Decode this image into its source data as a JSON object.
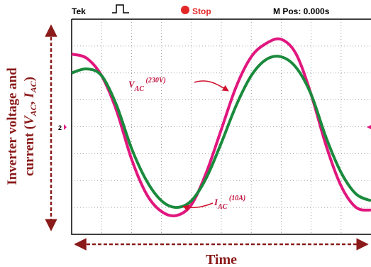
{
  "scope_header": {
    "brand": "Tek",
    "status": "Stop",
    "position": "M Pos: 0.000s",
    "ch_marker_left": "2",
    "status_color": "#e32626"
  },
  "chart_data": {
    "type": "line",
    "title": "",
    "xlabel": "Time",
    "ylabel_main": "Inverter voltage and",
    "ylabel_sub_prefix": "current  (",
    "ylabel_v": "V",
    "ylabel_v_sub": "AC",
    "ylabel_sep": ", ",
    "ylabel_i": "I",
    "ylabel_i_sub": "AC",
    "ylabel_suffix": ")",
    "grid": true,
    "xlim": [
      0,
      10
    ],
    "ylim": [
      -4,
      4
    ],
    "series": [
      {
        "name": "V_AC (230V)",
        "color": "#e0177e",
        "x": [
          0,
          0.5,
          1.0,
          1.5,
          2.0,
          2.5,
          3.0,
          3.5,
          4.0,
          4.5,
          5.0,
          5.5,
          6.0,
          6.5,
          7.0,
          7.5,
          8.0,
          8.5,
          9.0,
          9.5,
          10.0
        ],
        "values": [
          2.7,
          2.55,
          1.9,
          0.6,
          -1.2,
          -2.5,
          -3.15,
          -3.3,
          -2.9,
          -1.7,
          -0.1,
          1.5,
          2.6,
          3.1,
          3.25,
          2.7,
          1.2,
          -0.7,
          -2.2,
          -3.0,
          -3.1
        ]
      },
      {
        "name": "I_AC (10A)",
        "color": "#1a8a3c",
        "x": [
          0,
          0.5,
          1.0,
          1.5,
          2.0,
          2.5,
          3.0,
          3.5,
          4.0,
          4.5,
          5.0,
          5.5,
          6.0,
          6.5,
          7.0,
          7.5,
          8.0,
          8.5,
          9.0,
          9.5,
          10.0
        ],
        "values": [
          2.0,
          2.15,
          1.9,
          0.8,
          -0.8,
          -2.0,
          -2.75,
          -3.0,
          -2.75,
          -1.9,
          -0.6,
          0.8,
          1.9,
          2.5,
          2.6,
          2.2,
          1.2,
          -0.4,
          -1.7,
          -2.5,
          -2.75
        ]
      }
    ],
    "annotations": [
      {
        "label": "V",
        "sub": "AC",
        "sup": " (230V)"
      },
      {
        "label": "I",
        "sub": "AC",
        "sup": " (10A)"
      }
    ]
  }
}
